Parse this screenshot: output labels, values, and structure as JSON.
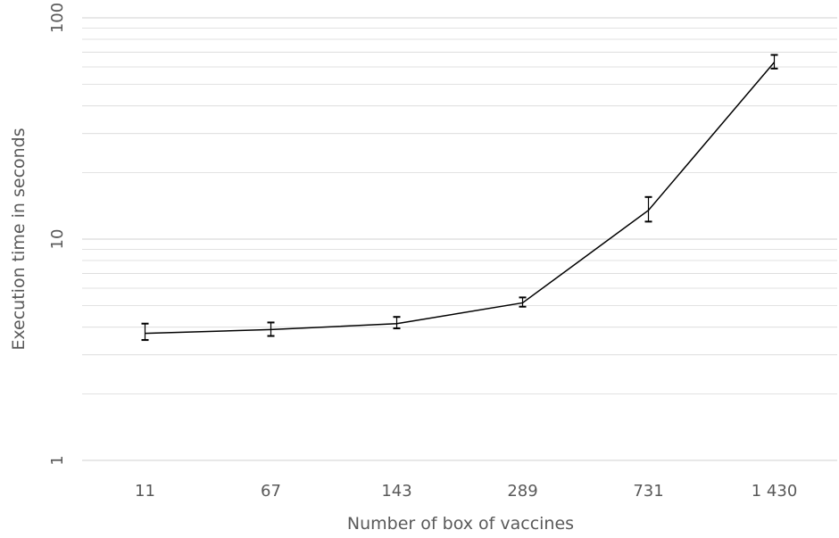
{
  "chart_data": {
    "type": "line",
    "categories": [
      "11",
      "67",
      "143",
      "289",
      "731",
      "1 430"
    ],
    "series": [
      {
        "values": [
          3.75,
          3.9,
          4.15,
          5.15,
          13.5,
          63
        ],
        "error_low": [
          3.5,
          3.65,
          3.95,
          4.95,
          12.0,
          59
        ],
        "error_high": [
          4.15,
          4.2,
          4.45,
          5.45,
          15.5,
          68
        ]
      }
    ],
    "xlabel": "Number of box of vaccines",
    "ylabel": "Execution time in seconds",
    "yscale": "log",
    "ylim": [
      1,
      100
    ],
    "yticks": [
      1,
      10,
      100
    ],
    "ytick_labels": [
      "1",
      "10",
      "100"
    ],
    "grid": true,
    "minor_grid": true,
    "colors": {
      "line": "#000000",
      "grid": "#d9d9d9",
      "text": "#595959"
    }
  }
}
